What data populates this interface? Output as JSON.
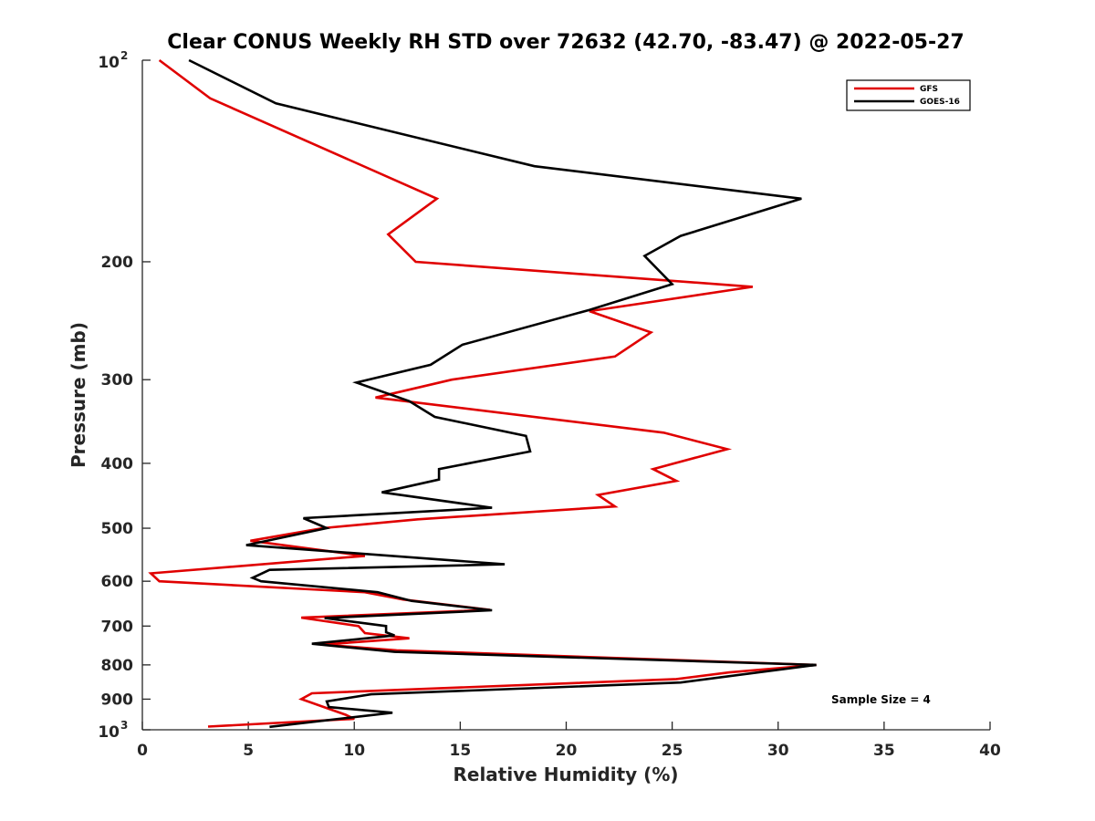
{
  "chart_data": {
    "type": "line",
    "title": "Clear CONUS Weekly RH STD over 72632 (42.70, -83.47) @ 2022-05-27",
    "xlabel": "Relative Humidity (%)",
    "ylabel": "Pressure (mb)",
    "xlim": [
      0,
      40
    ],
    "ylim": [
      100,
      1000
    ],
    "yscale": "log",
    "y_reversed": true,
    "grid": false,
    "legend_position": "top-right",
    "x_ticks": [
      {
        "value": 0,
        "label": "0"
      },
      {
        "value": 5,
        "label": "5"
      },
      {
        "value": 10,
        "label": "10"
      },
      {
        "value": 15,
        "label": "15"
      },
      {
        "value": 20,
        "label": "20"
      },
      {
        "value": 25,
        "label": "25"
      },
      {
        "value": 30,
        "label": "30"
      },
      {
        "value": 35,
        "label": "35"
      },
      {
        "value": 40,
        "label": "40"
      }
    ],
    "y_ticks": [
      {
        "value": 100,
        "base": "10",
        "exp": "2"
      },
      {
        "value": 200,
        "label": "200"
      },
      {
        "value": 300,
        "label": "300"
      },
      {
        "value": 400,
        "label": "400"
      },
      {
        "value": 500,
        "label": "500"
      },
      {
        "value": 600,
        "label": "600"
      },
      {
        "value": 700,
        "label": "700"
      },
      {
        "value": 800,
        "label": "800"
      },
      {
        "value": 900,
        "label": "900"
      },
      {
        "value": 1000,
        "base": "10",
        "exp": "3"
      }
    ],
    "annotation": "Sample Size = 4",
    "series": [
      {
        "name": "GFS",
        "color": "#e00000",
        "points": [
          [
            0.8,
            100
          ],
          [
            3.2,
            114
          ],
          [
            13.9,
            161
          ],
          [
            11.6,
            182
          ],
          [
            12.9,
            200
          ],
          [
            28.8,
            218
          ],
          [
            21.1,
            237
          ],
          [
            24.0,
            255
          ],
          [
            22.3,
            277
          ],
          [
            14.6,
            300
          ],
          [
            11.0,
            319
          ],
          [
            24.6,
            360
          ],
          [
            27.6,
            381
          ],
          [
            24.1,
            408
          ],
          [
            25.2,
            425
          ],
          [
            21.5,
            446
          ],
          [
            22.3,
            464
          ],
          [
            13.0,
            485
          ],
          [
            8.5,
            500
          ],
          [
            5.1,
            522
          ],
          [
            10.5,
            550
          ],
          [
            0.4,
            584
          ],
          [
            0.8,
            600
          ],
          [
            10.5,
            623
          ],
          [
            12.3,
            639
          ],
          [
            16.4,
            662
          ],
          [
            7.5,
            680
          ],
          [
            10.2,
            700
          ],
          [
            10.5,
            717
          ],
          [
            12.6,
            730
          ],
          [
            8.5,
            746
          ],
          [
            12.0,
            761
          ],
          [
            31.8,
            800
          ],
          [
            27.7,
            821
          ],
          [
            25.2,
            840
          ],
          [
            8.0,
            882
          ],
          [
            7.5,
            900
          ],
          [
            9.6,
            950
          ],
          [
            10.0,
            963
          ],
          [
            3.1,
            989
          ]
        ]
      },
      {
        "name": "GOES-16",
        "color": "#000000",
        "points": [
          [
            2.2,
            100
          ],
          [
            6.3,
            116
          ],
          [
            18.5,
            144
          ],
          [
            31.1,
            161
          ],
          [
            25.4,
            183
          ],
          [
            23.7,
            196
          ],
          [
            25.0,
            216
          ],
          [
            21.1,
            236
          ],
          [
            15.1,
            266
          ],
          [
            13.6,
            285
          ],
          [
            10.1,
            303
          ],
          [
            12.6,
            323
          ],
          [
            13.8,
            341
          ],
          [
            18.1,
            364
          ],
          [
            18.3,
            384
          ],
          [
            14.0,
            408
          ],
          [
            14.0,
            423
          ],
          [
            11.3,
            442
          ],
          [
            16.5,
            466
          ],
          [
            7.6,
            483
          ],
          [
            8.7,
            500
          ],
          [
            4.9,
            530
          ],
          [
            17.1,
            566
          ],
          [
            6.0,
            577
          ],
          [
            5.2,
            593
          ],
          [
            5.6,
            600
          ],
          [
            11.1,
            623
          ],
          [
            12.7,
            642
          ],
          [
            16.5,
            663
          ],
          [
            8.6,
            681
          ],
          [
            11.5,
            700
          ],
          [
            11.5,
            715
          ],
          [
            11.9,
            723
          ],
          [
            8.0,
            744
          ],
          [
            11.9,
            765
          ],
          [
            31.8,
            800
          ],
          [
            25.4,
            850
          ],
          [
            10.8,
            885
          ],
          [
            8.7,
            907
          ],
          [
            8.8,
            925
          ],
          [
            11.8,
            943
          ],
          [
            6.0,
            990
          ]
        ]
      }
    ]
  }
}
